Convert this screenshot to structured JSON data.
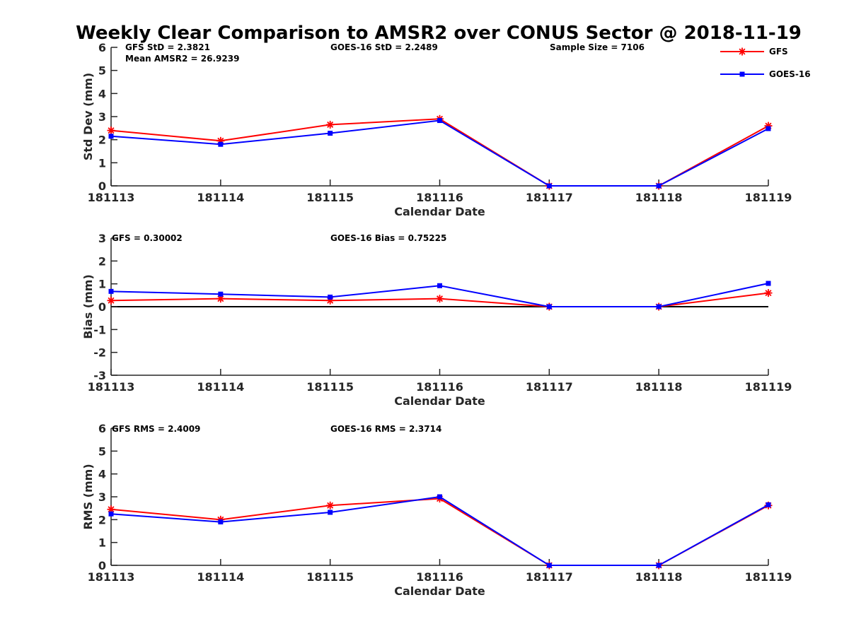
{
  "figure": {
    "title": "Weekly Clear Comparison to AMSR2 over CONUS Sector @ 2018-11-19"
  },
  "legend": {
    "placement": "top-right",
    "entries": [
      {
        "label": "GFS",
        "color": "#ff0000",
        "marker": "asterisk"
      },
      {
        "label": "GOES-16",
        "color": "#0000ff",
        "marker": "square"
      }
    ]
  },
  "chart_data": [
    {
      "type": "line",
      "xlabel": "Calendar Date",
      "ylabel": "Std Dev (mm)",
      "categories": [
        "181113",
        "181114",
        "181115",
        "181116",
        "181117",
        "181118",
        "181119"
      ],
      "ylim": [
        0,
        6
      ],
      "yticks": [
        "0",
        "1",
        "2",
        "3",
        "4",
        "5",
        "6"
      ],
      "zero_line": false,
      "series": [
        {
          "name": "GFS",
          "color": "#ff0000",
          "marker": "asterisk",
          "values": [
            2.4,
            1.95,
            2.65,
            2.9,
            0.0,
            0.0,
            2.6
          ]
        },
        {
          "name": "GOES-16",
          "color": "#0000ff",
          "marker": "square",
          "values": [
            2.15,
            1.8,
            2.28,
            2.83,
            0.0,
            0.0,
            2.48
          ]
        }
      ],
      "annotations": [
        "GFS StD = 2.3821",
        "Mean AMSR2 = 26.9239",
        "GOES-16 StD = 2.2489",
        "Sample Size = 7106"
      ]
    },
    {
      "type": "line",
      "xlabel": "Calendar Date",
      "ylabel": "Bias (mm)",
      "categories": [
        "181113",
        "181114",
        "181115",
        "181116",
        "181117",
        "181118",
        "181119"
      ],
      "ylim": [
        -3,
        3
      ],
      "yticks": [
        "-3",
        "-2",
        "-1",
        "0",
        "1",
        "2",
        "3"
      ],
      "zero_line": true,
      "series": [
        {
          "name": "GFS",
          "color": "#ff0000",
          "marker": "asterisk",
          "values": [
            0.27,
            0.35,
            0.27,
            0.35,
            0.0,
            0.0,
            0.6
          ]
        },
        {
          "name": "GOES-16",
          "color": "#0000ff",
          "marker": "square",
          "values": [
            0.67,
            0.55,
            0.42,
            0.92,
            0.0,
            0.0,
            1.02
          ]
        }
      ],
      "annotations": [
        "GFS = 0.30002",
        "GOES-16 Bias  = 0.75225"
      ]
    },
    {
      "type": "line",
      "xlabel": "Calendar Date",
      "ylabel": "RMS (mm)",
      "categories": [
        "181113",
        "181114",
        "181115",
        "181116",
        "181117",
        "181118",
        "181119"
      ],
      "ylim": [
        0,
        6
      ],
      "yticks": [
        "0",
        "1",
        "2",
        "3",
        "4",
        "5",
        "6"
      ],
      "zero_line": false,
      "series": [
        {
          "name": "GFS",
          "color": "#ff0000",
          "marker": "asterisk",
          "values": [
            2.45,
            2.0,
            2.62,
            2.92,
            0.0,
            0.0,
            2.62
          ]
        },
        {
          "name": "GOES-16",
          "color": "#0000ff",
          "marker": "square",
          "values": [
            2.25,
            1.9,
            2.32,
            3.0,
            0.0,
            0.0,
            2.65
          ]
        }
      ],
      "annotations": [
        "GFS RMS = 2.4009",
        "GOES-16 RMS = 2.3714"
      ]
    }
  ]
}
